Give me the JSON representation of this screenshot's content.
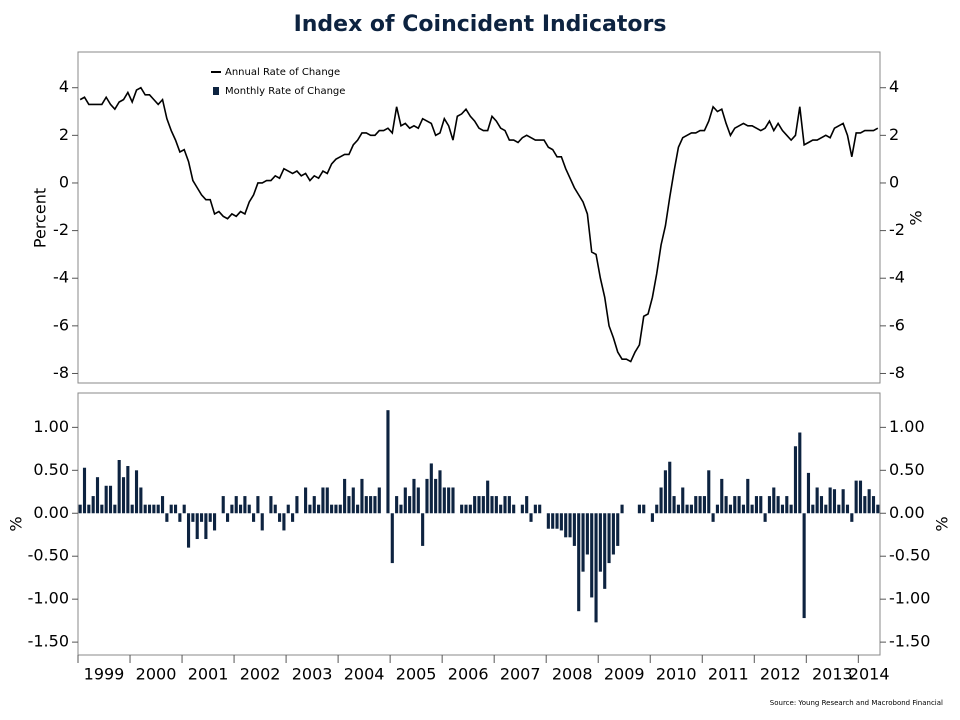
{
  "chart_data": [
    {
      "type": "line",
      "title": "Index of Coincident Indicators",
      "y_label": "Percent",
      "y2_label": "%",
      "ylim": [
        -8.4,
        5.5
      ],
      "yticks": [
        4,
        2,
        0,
        -2,
        -4,
        -6,
        -8
      ],
      "legend": "upper left",
      "series": [
        {
          "name": "Annual Rate of Change",
          "color": "#000000",
          "values": [
            3.5,
            3.6,
            3.3,
            3.3,
            3.3,
            3.3,
            3.6,
            3.3,
            3.1,
            3.4,
            3.5,
            3.8,
            3.4,
            3.9,
            4.0,
            3.7,
            3.7,
            3.5,
            3.3,
            3.5,
            2.7,
            2.2,
            1.8,
            1.3,
            1.4,
            0.9,
            0.1,
            -0.2,
            -0.5,
            -0.7,
            -0.7,
            -1.3,
            -1.2,
            -1.4,
            -1.5,
            -1.3,
            -1.4,
            -1.2,
            -1.3,
            -0.8,
            -0.5,
            0.0,
            0.0,
            0.1,
            0.1,
            0.3,
            0.2,
            0.6,
            0.5,
            0.4,
            0.5,
            0.3,
            0.4,
            0.1,
            0.3,
            0.2,
            0.5,
            0.4,
            0.8,
            1.0,
            1.1,
            1.2,
            1.2,
            1.6,
            1.8,
            2.1,
            2.1,
            2.0,
            2.0,
            2.2,
            2.2,
            2.3,
            2.1,
            3.2,
            2.4,
            2.5,
            2.3,
            2.4,
            2.3,
            2.7,
            2.6,
            2.5,
            2.0,
            2.1,
            2.7,
            2.4,
            1.8,
            2.8,
            2.9,
            3.1,
            2.8,
            2.6,
            2.3,
            2.2,
            2.2,
            2.8,
            2.6,
            2.3,
            2.2,
            1.8,
            1.8,
            1.7,
            1.9,
            2.0,
            1.9,
            1.8,
            1.8,
            1.8,
            1.5,
            1.4,
            1.1,
            1.1,
            0.6,
            0.2,
            -0.2,
            -0.5,
            -0.8,
            -1.3,
            -2.9,
            -3.0,
            -4.0,
            -4.8,
            -6.0,
            -6.5,
            -7.1,
            -7.4,
            -7.4,
            -7.5,
            -7.1,
            -6.8,
            -5.6,
            -5.5,
            -4.8,
            -3.8,
            -2.6,
            -1.8,
            -0.6,
            0.5,
            1.5,
            1.9,
            2.0,
            2.1,
            2.1,
            2.2,
            2.2,
            2.6,
            3.2,
            3.0,
            3.1,
            2.5,
            2.0,
            2.3,
            2.4,
            2.5,
            2.4,
            2.4,
            2.3,
            2.2,
            2.3,
            2.6,
            2.2,
            2.5,
            2.2,
            2.0,
            1.8,
            2.0,
            3.2,
            1.6,
            1.7,
            1.8,
            1.8,
            1.9,
            2.0,
            1.9,
            2.3,
            2.4,
            2.5,
            2.0,
            1.1,
            2.1,
            2.1,
            2.2,
            2.2,
            2.2,
            2.3
          ]
        }
      ]
    },
    {
      "type": "bar",
      "y_label": "%",
      "y2_label": "%",
      "ylim": [
        -1.65,
        1.4
      ],
      "yticks": [
        {
          "value": 1,
          "label": "1.00"
        },
        {
          "value": 0.5,
          "label": "0.50"
        },
        {
          "value": 0,
          "label": "0.00"
        },
        {
          "value": -0.5,
          "label": "-0.50"
        },
        {
          "value": -1,
          "label": "-1.00"
        },
        {
          "value": -1.5,
          "label": "-1.50"
        }
      ],
      "categories": [
        "1999",
        null,
        null,
        null,
        null,
        null,
        null,
        null,
        null,
        null,
        null,
        null,
        "2000",
        null,
        null,
        null,
        null,
        null,
        null,
        null,
        null,
        null,
        null,
        null,
        "2001",
        null,
        null,
        null,
        null,
        null,
        null,
        null,
        null,
        null,
        null,
        null,
        "2002",
        null,
        null,
        null,
        null,
        null,
        null,
        null,
        null,
        null,
        null,
        null,
        "2003",
        null,
        null,
        null,
        null,
        null,
        null,
        null,
        null,
        null,
        null,
        null,
        "2004",
        null,
        null,
        null,
        null,
        null,
        null,
        null,
        null,
        null,
        null,
        null,
        "2005",
        null,
        null,
        null,
        null,
        null,
        null,
        null,
        null,
        null,
        null,
        null,
        "2006",
        null,
        null,
        null,
        null,
        null,
        null,
        null,
        null,
        null,
        null,
        null,
        "2007",
        null,
        null,
        null,
        null,
        null,
        null,
        null,
        null,
        null,
        null,
        null,
        "2008",
        null,
        null,
        null,
        null,
        null,
        null,
        null,
        null,
        null,
        null,
        null,
        "2009",
        null,
        null,
        null,
        null,
        null,
        null,
        null,
        null,
        null,
        null,
        null,
        "2010",
        null,
        null,
        null,
        null,
        null,
        null,
        null,
        null,
        null,
        null,
        null,
        "2011",
        null,
        null,
        null,
        null,
        null,
        null,
        null,
        null,
        null,
        null,
        null,
        "2012",
        null,
        null,
        null,
        null,
        null,
        null,
        null,
        null,
        null,
        null,
        null,
        "2013",
        null,
        null,
        null,
        null,
        null,
        null,
        null,
        null,
        null,
        null,
        null,
        "2014",
        null,
        null,
        null,
        null
      ],
      "series": [
        {
          "name": "Monthly Rate of Change",
          "color": "#0d2340",
          "values": [
            0.1,
            0.53,
            0.1,
            0.2,
            0.42,
            0.1,
            0.32,
            0.32,
            0.1,
            0.62,
            0.42,
            0.55,
            0.1,
            0.5,
            0.3,
            0.1,
            0.1,
            0.1,
            0.1,
            0.2,
            -0.1,
            0.1,
            0.1,
            -0.1,
            0.1,
            -0.4,
            -0.1,
            -0.3,
            -0.1,
            -0.3,
            -0.1,
            -0.2,
            0,
            0.2,
            -0.1,
            0.1,
            0.2,
            0.1,
            0.2,
            0.1,
            -0.1,
            0.2,
            -0.2,
            0,
            0.2,
            0.1,
            -0.1,
            -0.2,
            0.1,
            -0.1,
            0.2,
            0,
            0.3,
            0.1,
            0.2,
            0.1,
            0.3,
            0.3,
            0.1,
            0.1,
            0.1,
            0.4,
            0.2,
            0.3,
            0.1,
            0.4,
            0.2,
            0.2,
            0.2,
            0.3,
            0,
            1.2,
            -0.58,
            0.2,
            0.1,
            0.3,
            0.2,
            0.4,
            0.3,
            -0.38,
            0.4,
            0.58,
            0.4,
            0.5,
            0.3,
            0.3,
            0.3,
            0,
            0.1,
            0.1,
            0.1,
            0.2,
            0.2,
            0.2,
            0.38,
            0.2,
            0.2,
            0.1,
            0.2,
            0.2,
            0.1,
            0,
            0.1,
            0.2,
            -0.1,
            0.1,
            0.1,
            0,
            -0.18,
            -0.18,
            -0.18,
            -0.2,
            -0.28,
            -0.28,
            -0.38,
            -1.14,
            -0.68,
            -0.48,
            -0.98,
            -1.27,
            -0.68,
            -0.88,
            -0.58,
            -0.48,
            -0.38,
            0.1,
            0,
            0,
            0,
            0.1,
            0.1,
            0,
            -0.1,
            0.1,
            0.3,
            0.5,
            0.6,
            0.2,
            0.1,
            0.3,
            0.1,
            0.1,
            0.2,
            0.2,
            0.2,
            0.5,
            -0.1,
            0.1,
            0.4,
            0.2,
            0.1,
            0.2,
            0.2,
            0.1,
            0.4,
            0.1,
            0.2,
            0.2,
            -0.1,
            0.2,
            0.3,
            0.2,
            0.1,
            0.2,
            0.1,
            0.78,
            0.94,
            -1.22,
            0.47,
            0.1,
            0.3,
            0.2,
            0.1,
            0.3,
            0.28,
            0.1,
            0.28,
            0.1,
            -0.1,
            0.38,
            0.38,
            0.2,
            0.28,
            0.2,
            0.1
          ]
        }
      ]
    }
  ],
  "source": "Source: Young Research and Macrobond Financial"
}
